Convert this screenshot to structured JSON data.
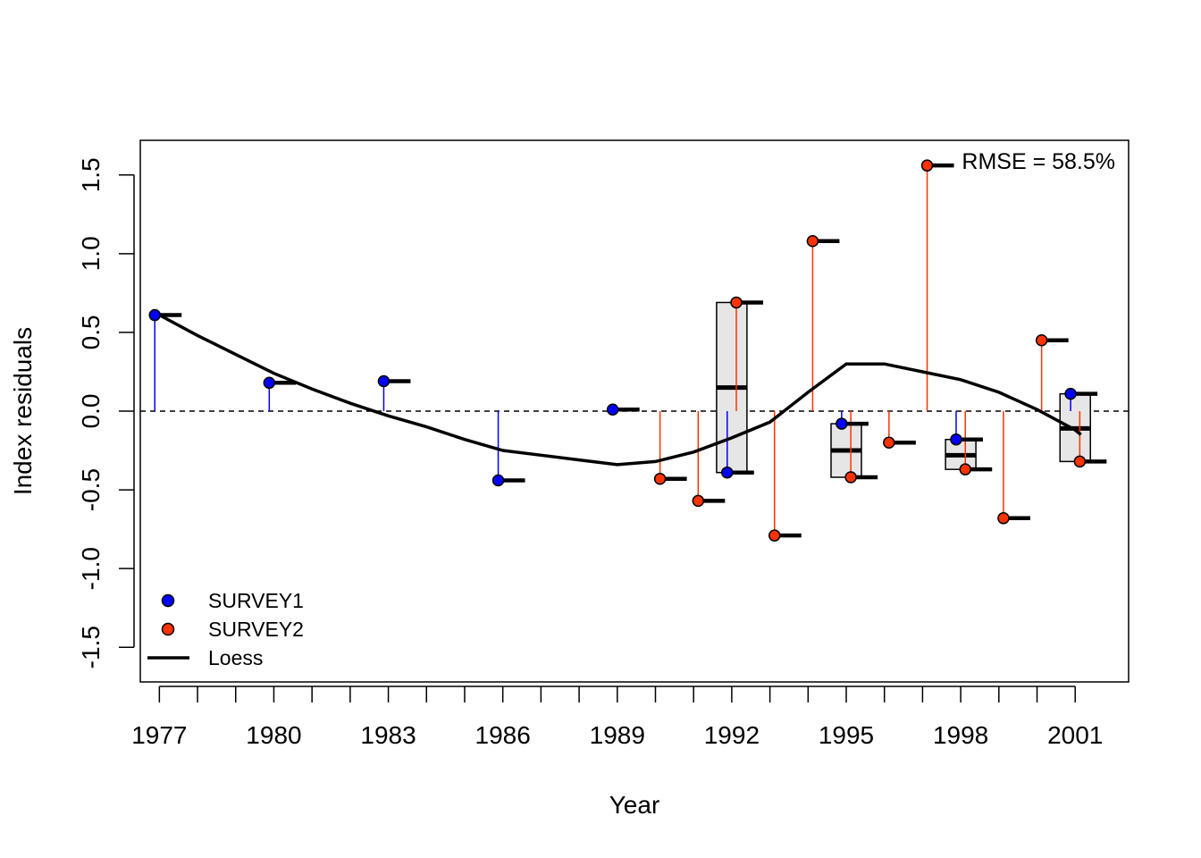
{
  "chart_data": {
    "type": "scatter",
    "xlabel": "Year",
    "ylabel": "Index residuals",
    "xlim": [
      1976.5,
      2002.4
    ],
    "ylim": [
      -1.72,
      1.72
    ],
    "x_ticks": [
      1977,
      1978,
      1979,
      1980,
      1981,
      1982,
      1983,
      1984,
      1985,
      1986,
      1987,
      1988,
      1989,
      1990,
      1991,
      1992,
      1993,
      1994,
      1995,
      1996,
      1997,
      1998,
      1999,
      2000,
      2001
    ],
    "x_tick_labels": [
      "1977",
      "1980",
      "1983",
      "1986",
      "1989",
      "1992",
      "1995",
      "1998",
      "2001"
    ],
    "y_ticks": [
      -1.5,
      -1.0,
      -0.5,
      0.0,
      0.5,
      1.0,
      1.5
    ],
    "y_tick_labels": [
      "-1.5",
      "-1.0",
      "-0.5",
      "0.0",
      "0.5",
      "1.0",
      "1.5"
    ],
    "annotation": "RMSE = 58.5%",
    "reference_line_y": 0,
    "legend_position": "bottom-left",
    "series": [
      {
        "name": "SURVEY1",
        "color": "#0000ff",
        "points": [
          {
            "x": 1977,
            "y": 0.61
          },
          {
            "x": 1980,
            "y": 0.18
          },
          {
            "x": 1983,
            "y": 0.19
          },
          {
            "x": 1986,
            "y": -0.44
          },
          {
            "x": 1989,
            "y": 0.01
          },
          {
            "x": 1992,
            "y": -0.39
          },
          {
            "x": 1995,
            "y": -0.08
          },
          {
            "x": 1998,
            "y": -0.18
          },
          {
            "x": 2001,
            "y": 0.11
          }
        ]
      },
      {
        "name": "SURVEY2",
        "color": "#ff3300",
        "points": [
          {
            "x": 1990,
            "y": -0.43
          },
          {
            "x": 1991,
            "y": -0.57
          },
          {
            "x": 1992,
            "y": 0.69
          },
          {
            "x": 1993,
            "y": -0.79
          },
          {
            "x": 1994,
            "y": 1.08
          },
          {
            "x": 1995,
            "y": -0.42
          },
          {
            "x": 1996,
            "y": -0.2
          },
          {
            "x": 1997,
            "y": 1.56
          },
          {
            "x": 1998,
            "y": -0.37
          },
          {
            "x": 1999,
            "y": -0.68
          },
          {
            "x": 2000,
            "y": 0.45
          },
          {
            "x": 2001,
            "y": -0.32
          }
        ]
      }
    ],
    "boxes": [
      {
        "x": 1992,
        "low": -0.39,
        "high": 0.69,
        "median": 0.15
      },
      {
        "x": 1995,
        "low": -0.42,
        "high": -0.08,
        "median": -0.25
      },
      {
        "x": 1998,
        "low": -0.37,
        "high": -0.18,
        "median": -0.28
      },
      {
        "x": 2001,
        "low": -0.32,
        "high": 0.11,
        "median": -0.11
      }
    ],
    "loess": {
      "name": "Loess",
      "color": "#000000",
      "x": [
        1977,
        1978,
        1979,
        1980,
        1981,
        1982,
        1983,
        1984,
        1985,
        1986,
        1987,
        1988,
        1989,
        1990,
        1991,
        1992,
        1993,
        1994,
        1995,
        1996,
        1997,
        1998,
        1999,
        2000,
        2001,
        2001.15
      ],
      "y": [
        0.61,
        0.48,
        0.36,
        0.24,
        0.14,
        0.05,
        -0.03,
        -0.1,
        -0.18,
        -0.25,
        -0.28,
        -0.31,
        -0.34,
        -0.32,
        -0.26,
        -0.17,
        -0.07,
        0.12,
        0.3,
        0.3,
        0.25,
        0.2,
        0.12,
        0.01,
        -0.12,
        -0.15
      ]
    }
  }
}
